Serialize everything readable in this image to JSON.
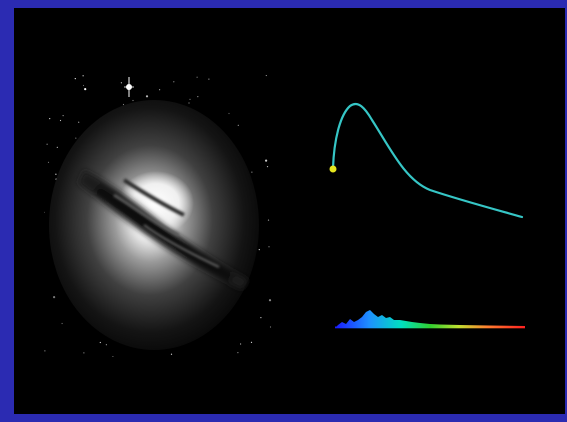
{
  "slide": {
    "background_color": "#2b2bb2",
    "panel_color": "#000000"
  },
  "galaxy_image": {
    "icon": "galaxy-icon",
    "dust_lane_color": "#202020",
    "core_color": "#ffffff"
  },
  "spectrum_curve": {
    "icon": "curve-icon",
    "line_color": "#36c6c6",
    "marker_color": "#e6e61e"
  },
  "spectrum_strip": {
    "icon": "rainbow-spectrum-icon",
    "colors": [
      "#1a1aff",
      "#1e90ff",
      "#00e0c0",
      "#30d030",
      "#e0e030",
      "#ff8030",
      "#ff2020"
    ]
  }
}
